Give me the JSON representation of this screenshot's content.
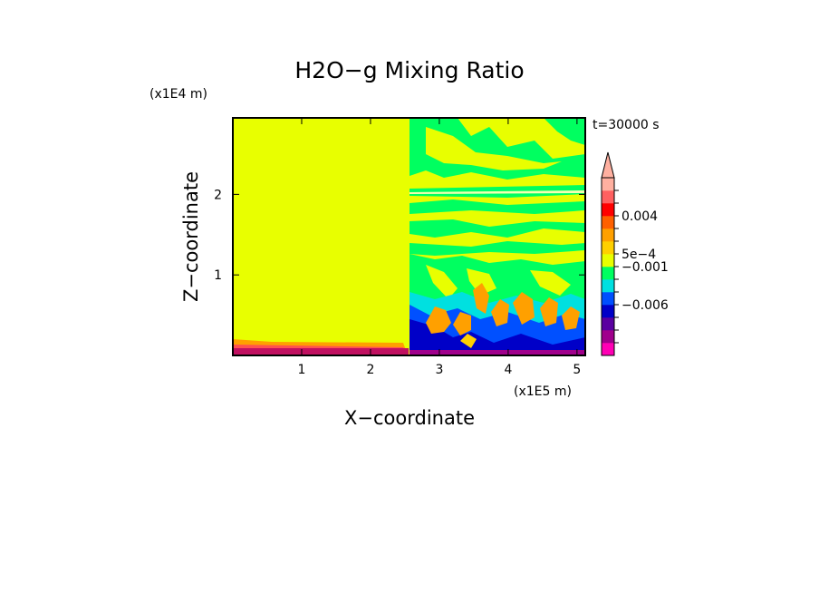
{
  "chart_data": {
    "type": "heatmap",
    "title": "H2O−g Mixing Ratio",
    "xlabel": "X−coordinate",
    "ylabel": "Z−coordinate",
    "x_unit": "(x1E5 m)",
    "y_unit": "(x1E4 m)",
    "time_label": "t=30000 s",
    "xlim": [
      0,
      5.12
    ],
    "ylim": [
      0,
      2.95
    ],
    "x_ticks": [
      {
        "value": 1,
        "label": "1"
      },
      {
        "value": 2,
        "label": "2"
      },
      {
        "value": 3,
        "label": "3"
      },
      {
        "value": 4,
        "label": "4"
      },
      {
        "value": 5,
        "label": "5"
      }
    ],
    "y_ticks": [
      {
        "value": 1,
        "label": "1"
      },
      {
        "value": 2,
        "label": "2"
      }
    ],
    "colorbar": {
      "colors": [
        "#ff00b4",
        "#a0008c",
        "#5a00a0",
        "#0000c8",
        "#0050ff",
        "#00e0e0",
        "#00ff60",
        "#e8ff00",
        "#ffd000",
        "#ffa000",
        "#ff6000",
        "#ff0000",
        "#ff6060",
        "#ffb0a0"
      ],
      "labels": [
        {
          "level": 4,
          "text": "−0.006"
        },
        {
          "level": 7,
          "text": "−0.001"
        },
        {
          "level": 8,
          "text": "5e−4"
        },
        {
          "level": 11,
          "text": "0.004"
        }
      ],
      "extend": "max"
    }
  }
}
